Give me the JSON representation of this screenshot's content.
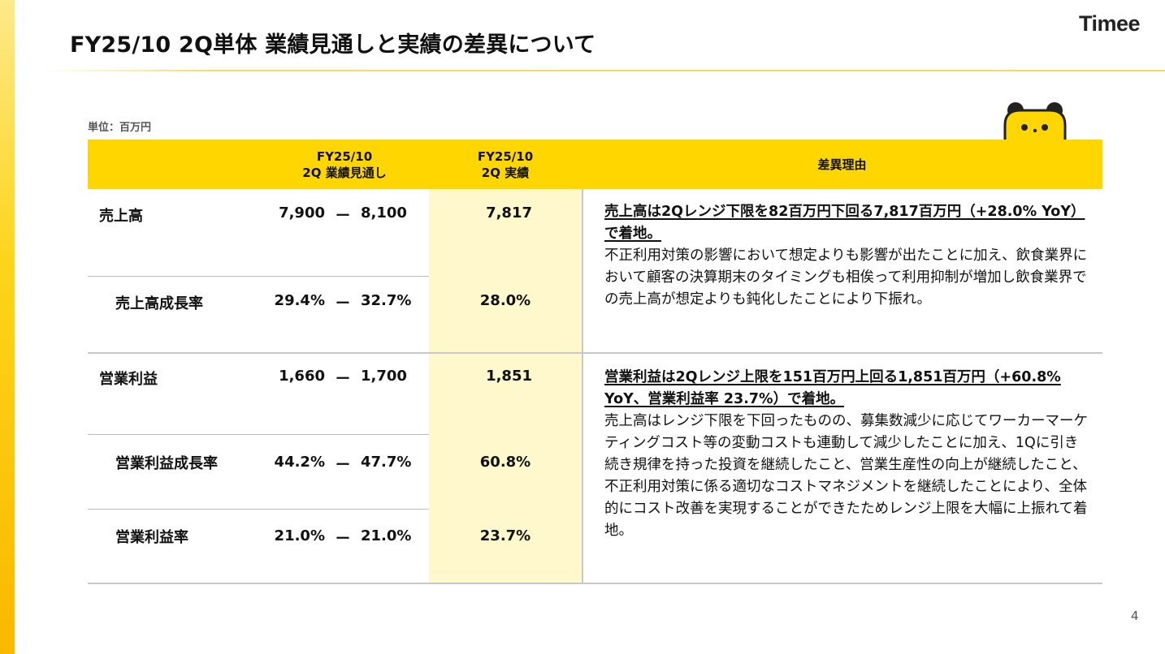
{
  "header": {
    "title": "FY25/10 2Q単体 業績見通しと実績の差異について",
    "logo": "Timee",
    "unit": "単位：百万円"
  },
  "colors": {
    "accent": "#ffd600",
    "actual_bg": "#fff8cc"
  },
  "table": {
    "columns": {
      "forecast_line1": "FY25/10",
      "forecast_line2": "2Q 業績見通し",
      "actual_line1": "FY25/10",
      "actual_line2": "2Q 実績",
      "reason": "差異理由"
    },
    "rows": [
      {
        "label": "売上高",
        "low": "7,900",
        "high": "8,100",
        "sep": "ー",
        "actual": "7,817"
      },
      {
        "label": "売上高成長率",
        "low": "29.4%",
        "high": "32.7%",
        "sep": "ー",
        "actual": "28.0%"
      },
      {
        "label": "営業利益",
        "low": "1,660",
        "high": "1,700",
        "sep": "ー",
        "actual": "1,851"
      },
      {
        "label": "営業利益成長率",
        "low": "44.2%",
        "high": "47.7%",
        "sep": "ー",
        "actual": "60.8%"
      },
      {
        "label": "営業利益率",
        "low": "21.0%",
        "high": "21.0%",
        "sep": "ー",
        "actual": "23.7%"
      }
    ],
    "reasons": [
      {
        "headline": "売上高は2Qレンジ下限を82百万円下回る7,817百万円（+28.0% YoY）で着地。",
        "body": "不正利用対策の影響において想定よりも影響が出たことに加え、飲食業界において顧客の決算期末のタイミングも相俟って利用抑制が増加し飲食業界での売上高が想定よりも鈍化したことにより下振れ。"
      },
      {
        "headline": "営業利益は2Qレンジ上限を151百万円上回る1,851百万円（+60.8% YoY、営業利益率 23.7%）で着地。",
        "body": "売上高はレンジ下限を下回ったものの、募集数減少に応じてワーカーマーケティングコスト等の変動コストも連動して減少したことに加え、1Qに引き続き規律を持った投資を継続したこと、営業生産性の向上が継続したこと、不正利用対策に係る適切なコストマネジメントを継続したことにより、全体的にコスト改善を実現することができたためレンジ上限を大幅に上振れて着地。"
      }
    ]
  },
  "footer": {
    "page_number": "4"
  }
}
